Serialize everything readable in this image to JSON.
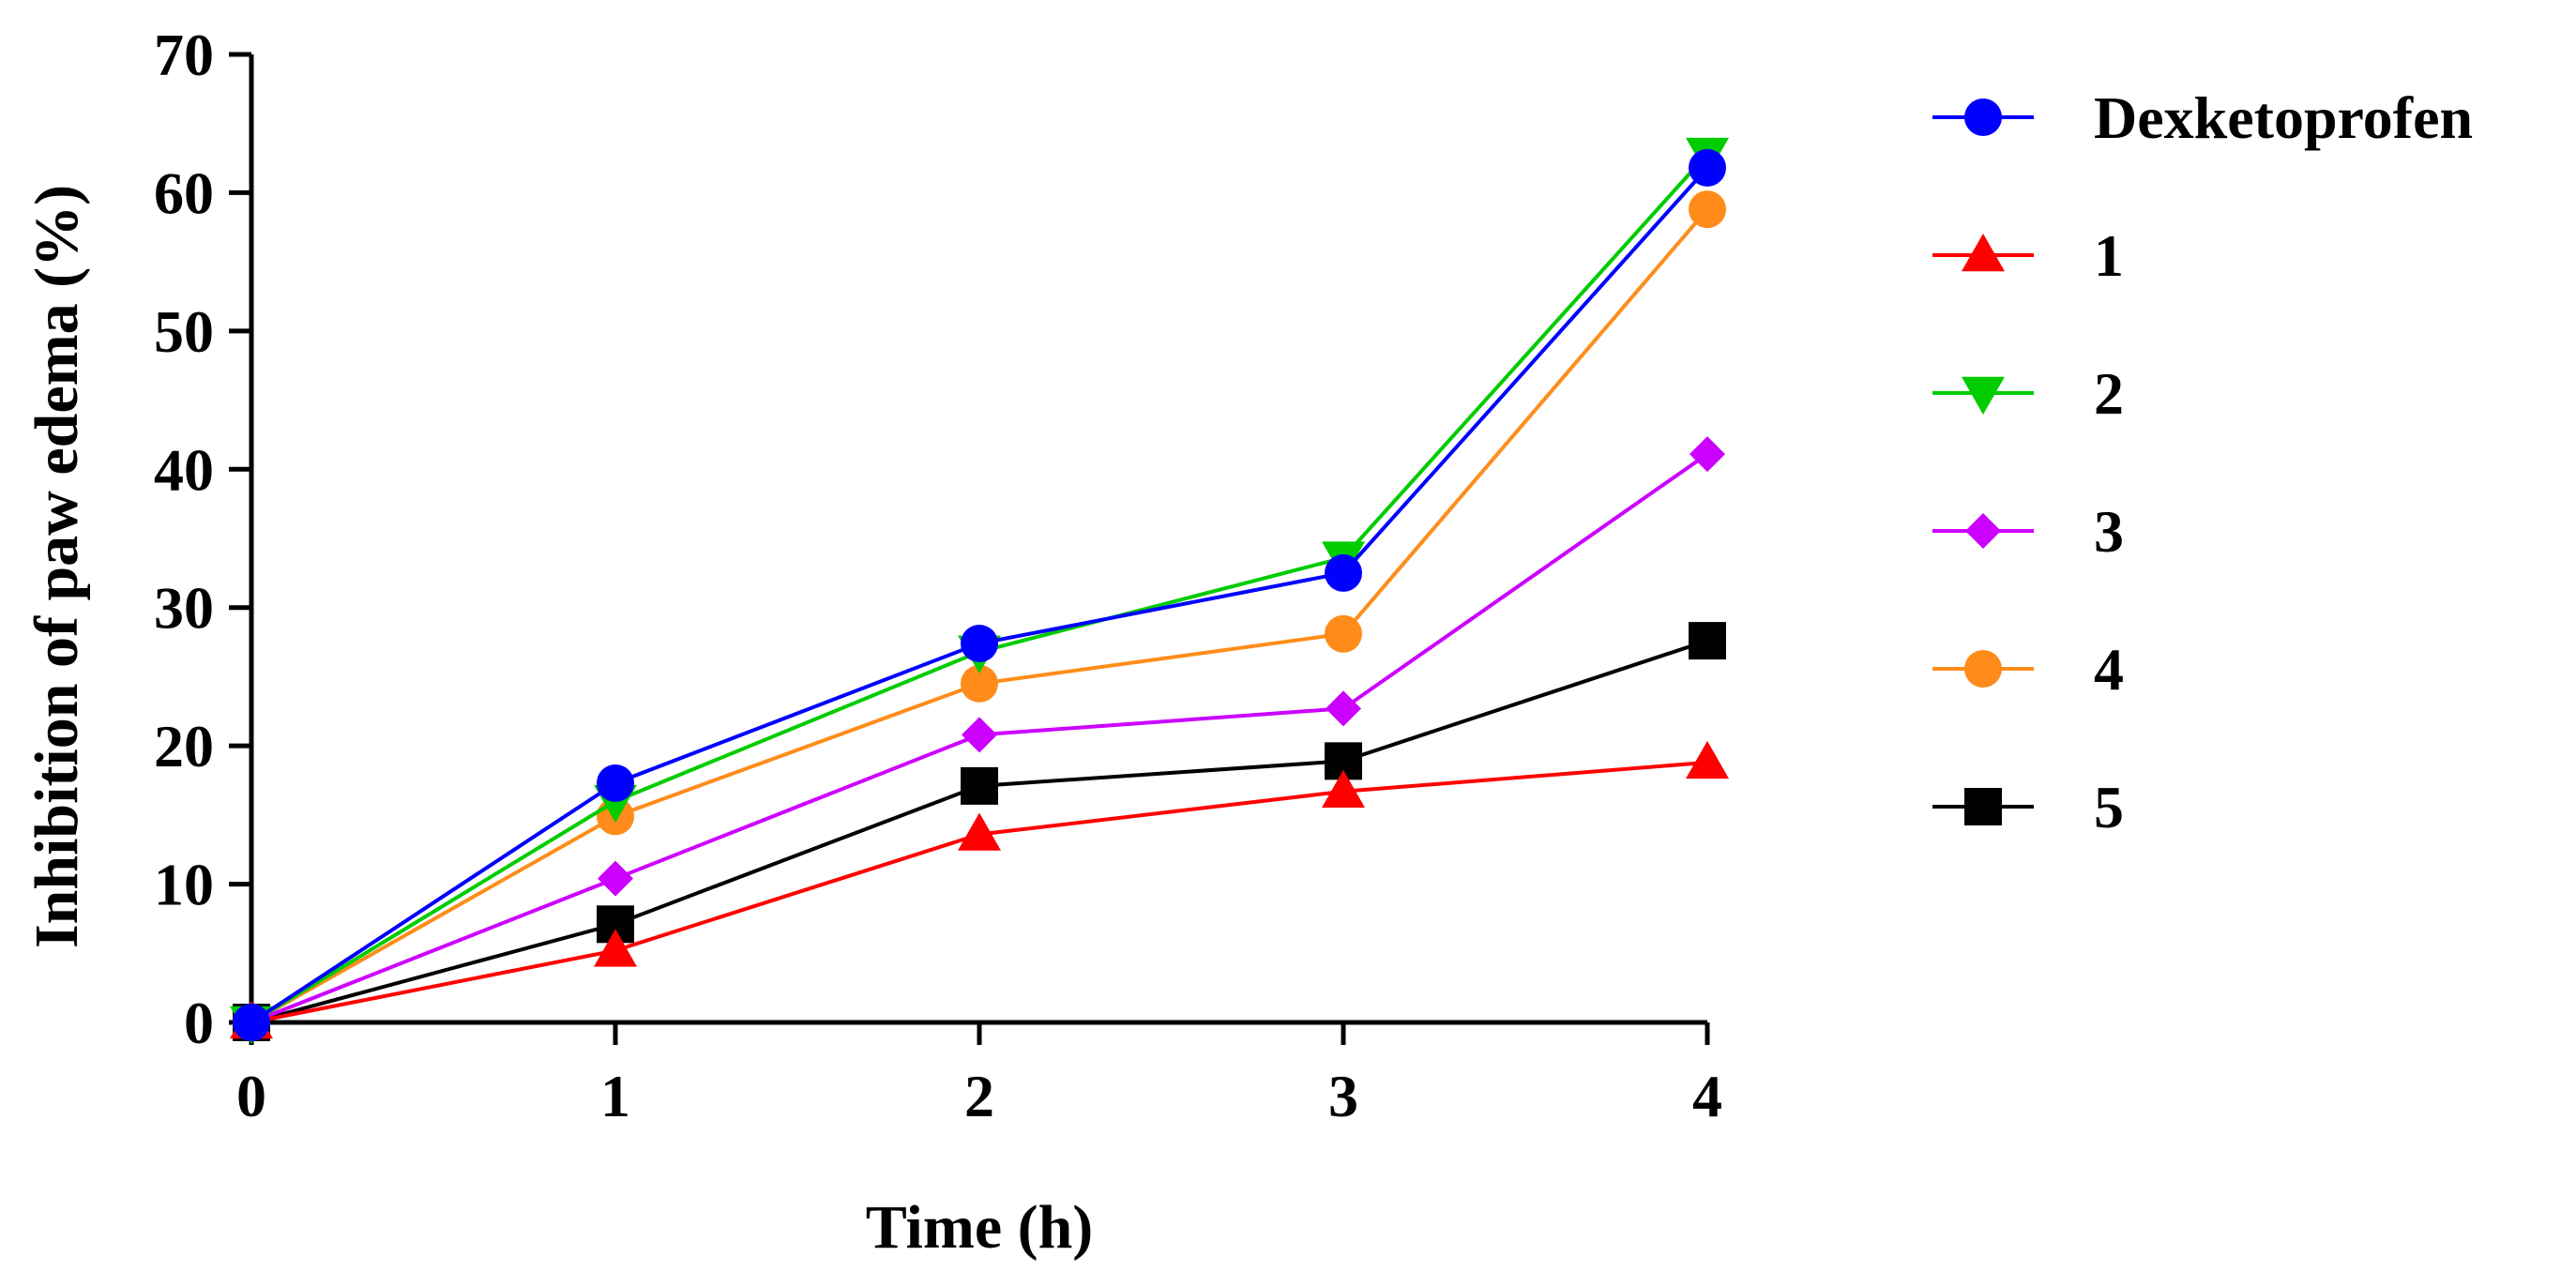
{
  "chart_data": {
    "type": "line",
    "title": "",
    "xlabel": "Time (h)",
    "ylabel": "Inhibition of paw edema (%)",
    "x": [
      0,
      1,
      2,
      3,
      4
    ],
    "x_tick_labels": [
      "0",
      "1",
      "2",
      "3",
      "4"
    ],
    "y_ticks": [
      0,
      10,
      20,
      30,
      40,
      50,
      60,
      70
    ],
    "y_tick_labels": [
      "0",
      "10",
      "20",
      "30",
      "40",
      "50",
      "60",
      "70"
    ],
    "xlim": [
      0,
      4
    ],
    "ylim": [
      0,
      70
    ],
    "grid": false,
    "legend_position": "right",
    "series": [
      {
        "name": "Dexketoprofen",
        "color": "#0000ff",
        "marker": "circle",
        "values": [
          0,
          17.3,
          27.4,
          32.5,
          61.8
        ]
      },
      {
        "name": "1",
        "color": "#ff0000",
        "marker": "triangle-up",
        "values": [
          0,
          5.2,
          13.6,
          16.7,
          18.8
        ]
      },
      {
        "name": "2",
        "color": "#00cc00",
        "marker": "triangle-down",
        "values": [
          0,
          16.0,
          26.8,
          33.6,
          62.8
        ]
      },
      {
        "name": "3",
        "color": "#cc00ff",
        "marker": "diamond",
        "values": [
          0,
          10.4,
          20.8,
          22.7,
          41.1
        ]
      },
      {
        "name": "4",
        "color": "#ff8c1a",
        "marker": "circle",
        "values": [
          0,
          14.9,
          24.5,
          28.1,
          58.8
        ]
      },
      {
        "name": "5",
        "color": "#000000",
        "marker": "square",
        "values": [
          0,
          7.1,
          17.1,
          18.9,
          27.6
        ]
      }
    ]
  }
}
